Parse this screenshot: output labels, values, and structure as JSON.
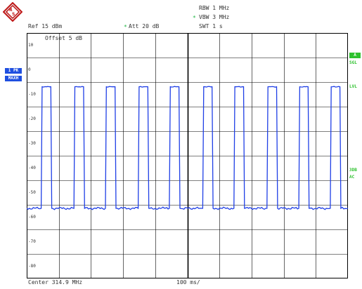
{
  "header": {
    "rbw": "RBW 1 MHz",
    "vbw_marker": "*",
    "vbw": "VBW 3 MHz",
    "swt": "SWT 1 s",
    "ref": "Ref  15 dBm",
    "att_marker": "*",
    "att": "Att  20 dB",
    "offset": "Offset  5 dB"
  },
  "left_tags": {
    "pk": "1 PK",
    "maxh": "MAXH"
  },
  "right_tags": {
    "a": "A",
    "sgl": "SGL",
    "lvl": "LVL",
    "3db": "3DB",
    "ac": "AC"
  },
  "y_labels": [
    "10",
    "0",
    "-10",
    "-20",
    "-30",
    "-40",
    "-50",
    "-60",
    "-70",
    "-80"
  ],
  "footer": {
    "center": "Center 314.9 MHz",
    "span": "100 ms/"
  },
  "colors": {
    "trace": "#1f3fe6",
    "grid": "#000000",
    "status_green": "#2ec22e",
    "tag_blue": "#1f4fe0"
  },
  "logo_icon": "rohde-schwarz-diamond-icon",
  "chart_data": {
    "type": "line",
    "ylabel": "",
    "xlabel": "",
    "ylim": [
      -90,
      15
    ],
    "xlim": [
      0,
      1000
    ],
    "x_unit": "ms",
    "grid": true,
    "series": [
      {
        "x": [
          0,
          45,
          48,
          75,
          78,
          147,
          150,
          177,
          180,
          245,
          248,
          275,
          278,
          347,
          350,
          377,
          380,
          444,
          447,
          474,
          477,
          548,
          551,
          577,
          580,
          645,
          648,
          675,
          678,
          748,
          751,
          778,
          781,
          847,
          850,
          876,
          879,
          945,
          948,
          975,
          978,
          1000
        ],
        "values": [
          -60,
          -60,
          -8,
          -8,
          -60,
          -60,
          -8,
          -8,
          -60,
          -60,
          -8,
          -8,
          -60,
          -60,
          -8,
          -8,
          -60,
          -60,
          -8,
          -8,
          -60,
          -60,
          -8,
          -8,
          -60,
          -60,
          -8,
          -8,
          -60,
          -60,
          -8,
          -8,
          -60,
          -60,
          -8,
          -8,
          -60,
          -60,
          -8,
          -8,
          -60,
          -60
        ]
      }
    ]
  }
}
